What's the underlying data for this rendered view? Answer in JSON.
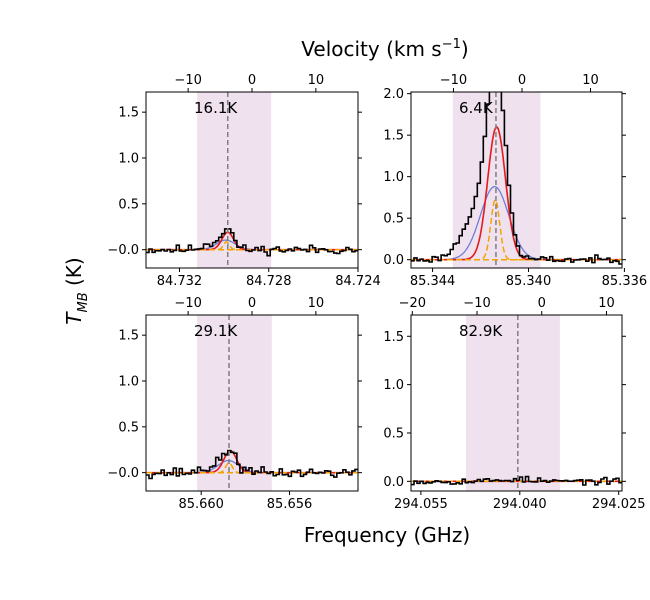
{
  "chart_data": {
    "type": "line",
    "figure": {
      "top_label": "Velocity (km s",
      "top_label_exp": "−1",
      "top_label_end": ")",
      "bottom_label": "Frequency (GHz)",
      "left_label_main": "T",
      "left_label_sub": "MB",
      "left_label_end": " (K)"
    },
    "colors": {
      "observed": "#000000",
      "model_red": "#e41a1c",
      "model_blue": "#6f7fd6",
      "model_orange": "#f4a300",
      "shade": "#efe1ee",
      "vline": "#7f7f7f"
    },
    "panels": [
      {
        "annotation": "16.1K",
        "freq_range": [
          84.7335,
          84.724
        ],
        "freq_ticks": [
          84.732,
          84.728,
          84.724
        ],
        "freq_tick_labels": [
          "84.732",
          "84.728",
          "84.724"
        ],
        "vel_range": [
          -16.6,
          16.6
        ],
        "vel_ticks": [
          -10,
          0,
          10
        ],
        "vel_tick_labels": [
          "−10",
          "0",
          "10"
        ],
        "y_range": [
          -0.2,
          1.72
        ],
        "y_ticks": [
          -0.0,
          0.5,
          1.0,
          1.5
        ],
        "y_tick_labels": [
          "−0.0",
          "0.5",
          "1.0",
          "1.5"
        ],
        "shade_vel": [
          -8.6,
          3.0
        ],
        "vline_vel": -3.8,
        "peak_vel": -3.8,
        "width_kms": 0.9,
        "peak_K": 0.21,
        "noise_K": 0.03,
        "peak_red": 0.19,
        "seed": 11
      },
      {
        "annotation": "6.4K",
        "freq_range": [
          85.3449,
          85.3361
        ],
        "freq_ticks": [
          85.344,
          85.34,
          85.336
        ],
        "freq_tick_labels": [
          "85.344",
          "85.340",
          "85.336"
        ],
        "vel_range": [
          -16.2,
          14.6
        ],
        "vel_ticks": [
          -10,
          0,
          10
        ],
        "vel_tick_labels": [
          "−10",
          "0",
          "10"
        ],
        "y_range": [
          -0.1,
          2.02
        ],
        "y_ticks": [
          0.0,
          0.5,
          1.0,
          1.5,
          2.0
        ],
        "y_tick_labels": [
          "0.0",
          "0.5",
          "1.0",
          "1.5",
          "2.0"
        ],
        "shade_vel": [
          -10.1,
          2.7
        ],
        "vline_vel": -3.8,
        "peak_vel": -3.7,
        "width_kms": 1.3,
        "peak_K": 1.95,
        "noise_K": 0.025,
        "peak_red": 1.6,
        "seed": 23
      },
      {
        "annotation": "29.1K",
        "freq_range": [
          85.6625,
          85.6529
        ],
        "freq_ticks": [
          85.66,
          85.656
        ],
        "freq_tick_labels": [
          "85.660",
          "85.656"
        ],
        "vel_range": [
          -16.6,
          16.6
        ],
        "vel_ticks": [
          -10,
          0,
          10
        ],
        "vel_tick_labels": [
          "−10",
          "0",
          "10"
        ],
        "y_range": [
          -0.2,
          1.72
        ],
        "y_ticks": [
          -0.0,
          0.5,
          1.0,
          1.5
        ],
        "y_tick_labels": [
          "−0.0",
          "0.5",
          "1.0",
          "1.5"
        ],
        "shade_vel": [
          -8.6,
          3.1
        ],
        "vline_vel": -3.6,
        "peak_vel": -3.4,
        "width_kms": 1.0,
        "peak_K": 0.22,
        "noise_K": 0.035,
        "peak_red": 0.24,
        "seed": 37
      },
      {
        "annotation": "82.9K",
        "freq_range": [
          294.0565,
          294.0245
        ],
        "freq_ticks": [
          294.055,
          294.04,
          294.025
        ],
        "freq_tick_labels": [
          "294.055",
          "294.040",
          "294.025"
        ],
        "vel_range": [
          -20.2,
          12.4
        ],
        "vel_ticks": [
          -20,
          -10,
          0,
          10
        ],
        "vel_tick_labels": [
          "−20",
          "−10",
          "0",
          "10"
        ],
        "y_range": [
          -0.1,
          1.72
        ],
        "y_ticks": [
          0.0,
          0.5,
          1.0,
          1.5
        ],
        "y_tick_labels": [
          "0.0",
          "0.5",
          "1.0",
          "1.5"
        ],
        "shade_vel": [
          -11.7,
          2.8
        ],
        "vline_vel": -3.7,
        "peak_vel": -3.7,
        "width_kms": 1.5,
        "peak_K": 0.02,
        "noise_K": 0.02,
        "peak_red": 0.0,
        "seed": 53
      }
    ]
  }
}
